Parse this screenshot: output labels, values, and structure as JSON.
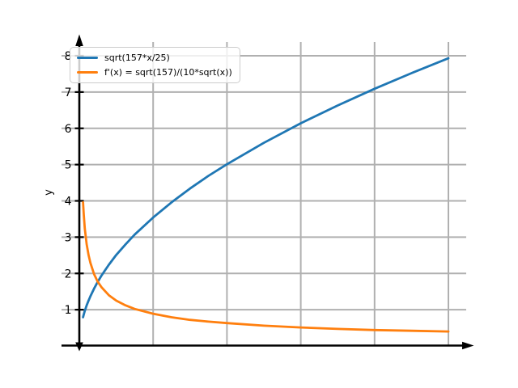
{
  "chart_data": {
    "type": "line",
    "title": "",
    "xlabel": "",
    "ylabel": "y",
    "xlim": [
      -0.5,
      10.5
    ],
    "ylim": [
      0,
      8.4
    ],
    "grid": true,
    "grid_color": "#b0b0b0",
    "axis_color": "#000000",
    "background_color": "#ffffff",
    "x_gridlines": [
      2,
      4,
      6,
      8,
      10
    ],
    "y_ticks": [
      1,
      2,
      3,
      4,
      5,
      6,
      7,
      8
    ],
    "legend_position": "upper left",
    "x": [
      0.1,
      0.12,
      0.15,
      0.2,
      0.25,
      0.3,
      0.4,
      0.5,
      0.6,
      0.8,
      1,
      1.25,
      1.5,
      2,
      2.5,
      3,
      3.5,
      4,
      5,
      6,
      7,
      8,
      9,
      10
    ],
    "series": [
      {
        "name": "sqrt(157*x/25)",
        "color": "#1f77b4",
        "y": [
          0.79,
          0.87,
          0.97,
          1.12,
          1.25,
          1.37,
          1.58,
          1.77,
          1.94,
          2.24,
          2.51,
          2.8,
          3.07,
          3.54,
          3.96,
          4.34,
          4.69,
          5.01,
          5.6,
          6.14,
          6.63,
          7.09,
          7.52,
          7.93
        ]
      },
      {
        "name": "f'(x) = sqrt(157)/(10*sqrt(x))",
        "color": "#ff7f0e",
        "y": [
          3.96,
          3.62,
          3.23,
          2.8,
          2.51,
          2.29,
          1.98,
          1.77,
          1.62,
          1.4,
          1.25,
          1.12,
          1.02,
          0.89,
          0.79,
          0.72,
          0.67,
          0.63,
          0.56,
          0.51,
          0.47,
          0.44,
          0.42,
          0.4
        ]
      }
    ]
  }
}
